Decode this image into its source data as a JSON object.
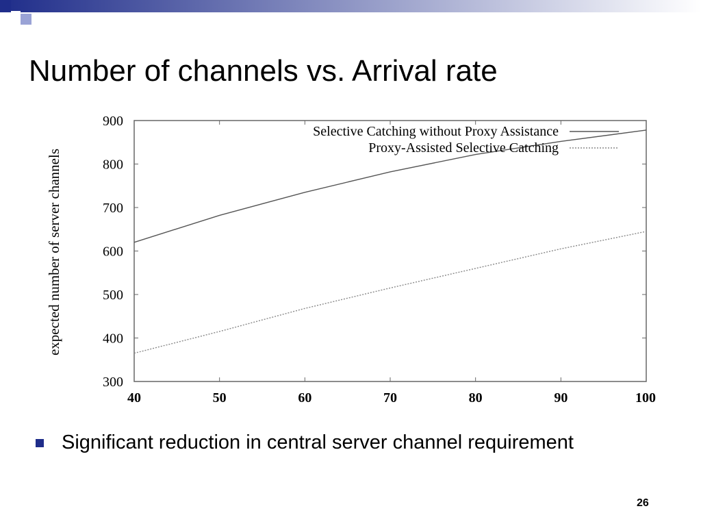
{
  "slide": {
    "title": "Number of channels vs. Arrival rate",
    "bullet": "Significant reduction in central server channel requirement",
    "page_number": "26",
    "accent_color": "#1f2d8a"
  },
  "chart_data": {
    "type": "line",
    "title": "",
    "xlabel": "",
    "ylabel": "expected number of server channels",
    "xlim": [
      40,
      100
    ],
    "ylim": [
      300,
      900
    ],
    "x_ticks": [
      40,
      50,
      60,
      70,
      80,
      90,
      100
    ],
    "y_ticks": [
      300,
      400,
      500,
      600,
      700,
      800,
      900
    ],
    "x_tick_labels": [
      "40",
      "50",
      "60",
      "70",
      "80",
      "90",
      "100"
    ],
    "y_tick_labels": [
      "300",
      "400",
      "500",
      "600",
      "700",
      "800",
      "900"
    ],
    "legend_position": "top-right",
    "grid": false,
    "x": [
      40,
      50,
      60,
      70,
      80,
      90,
      100
    ],
    "series": [
      {
        "name": "Selective Catching without Proxy Assistance",
        "values": [
          620,
          682,
          735,
          782,
          822,
          852,
          878
        ],
        "style": "solid",
        "color": "#555555"
      },
      {
        "name": "Proxy-Assisted Selective Catching",
        "values": [
          365,
          415,
          468,
          515,
          560,
          605,
          645
        ],
        "style": "dotted",
        "color": "#888888"
      }
    ]
  }
}
